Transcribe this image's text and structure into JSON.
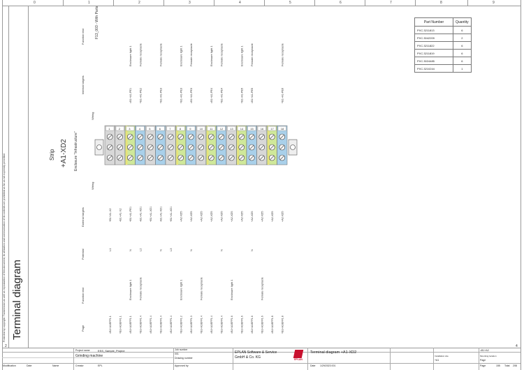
{
  "column_numbers": [
    "0",
    "1",
    "2",
    "3",
    "4",
    "5",
    "6",
    "7",
    "8",
    "9"
  ],
  "row_markers": {
    "left_bottom": "2",
    "right_bottom": "4"
  },
  "page_title": "Terminal diagram",
  "side_ref": "F13_003 - With Parts",
  "copyright_note": "Protected by copyright. Transmission as well as reproduction of this document, its utilization and communication of its contents are prohibited as far as not expressly permitted.",
  "strip": {
    "label": "Strip",
    "name": "+A1-XD2",
    "enclosure": "Enclosure \"Infrastructure\""
  },
  "row_headers": {
    "function_text": "Function text",
    "internal_targets": "Internal targets",
    "wiring_top": "Wiring",
    "wiring_bottom": "Wiring",
    "external_targets": "External targets",
    "potential": "Potential",
    "function_text_bottom": "Function text",
    "page": "Page"
  },
  "terminals": [
    {
      "num": "1",
      "color": "gray",
      "func_top": "",
      "internal": "",
      "external": "+B1+A1-X2",
      "potential": "L1",
      "func_bottom": "",
      "page": "=B1+A1/EFF1.1"
    },
    {
      "num": "2",
      "color": "gray",
      "func_top": "",
      "internal": "",
      "external": "+B1+A1-X2",
      "potential": "",
      "func_bottom": "",
      "page": "=B1+A1/EFF1.1"
    },
    {
      "num": "3",
      "color": "green",
      "func_top": "Enclosure light 1",
      "internal": "=B1+A1-PE1",
      "external": "+B1+A1-PE1",
      "potential": "N",
      "func_bottom": "Enclosure light 1",
      "page": "=B1+A1/EFF1.1"
    },
    {
      "num": "4",
      "color": "blue",
      "func_top": "Female receptacle",
      "internal": "=B1+A1-PE2",
      "external": "+B1+A1-XD1",
      "potential": "L2",
      "func_bottom": "Female receptacle",
      "page": "=B1+A1/EFF1.4"
    },
    {
      "num": "5",
      "color": "gray",
      "func_top": "",
      "internal": "",
      "external": "+B1+A1-XD1",
      "potential": "",
      "func_bottom": "",
      "page": "=B1+A1/EFF1.4"
    },
    {
      "num": "6",
      "color": "blue",
      "func_top": "Female receptacle",
      "internal": "=B1+A1-PE3",
      "external": "+B1+A1-XD1",
      "potential": "N",
      "func_bottom": "",
      "page": "=B1+A1/EFF1.4"
    },
    {
      "num": "7",
      "color": "gray",
      "func_top": "",
      "internal": "",
      "external": "+B1+A1-XD1",
      "potential": "L3",
      "func_bottom": "",
      "page": "=B1+A1/EFF1.4"
    },
    {
      "num": "8",
      "color": "green",
      "func_top": "Enclosure light 1",
      "internal": "=B1+A1-PE3",
      "external": "+A2-XD5",
      "potential": "",
      "func_bottom": "Enclosure light 1",
      "page": "=B1+A1/EFF1.2"
    },
    {
      "num": "9",
      "color": "blue",
      "func_top": "Female receptacle",
      "internal": "=B1+A1-PE3",
      "external": "+A2-XD5",
      "potential": "N",
      "func_bottom": "",
      "page": "=B1+A1/EFF1.3"
    },
    {
      "num": "10",
      "color": "gray",
      "func_top": "",
      "internal": "",
      "external": "+A2-XD5",
      "potential": "",
      "func_bottom": "Female receptacle",
      "page": "=B1+A1/EFF1.4"
    },
    {
      "num": "11",
      "color": "green",
      "func_top": "Enclosure light 1",
      "internal": "=B1+A1-PE4",
      "external": "+A2-XD5",
      "potential": "",
      "func_bottom": "",
      "page": "=B1+A1/EFF1.4"
    },
    {
      "num": "12",
      "color": "blue",
      "func_top": "Female receptacle",
      "internal": "=B1+A1-PE4",
      "external": "+A2-XD5",
      "potential": "N",
      "func_bottom": "",
      "page": "=B1+A1/EFF1.4"
    },
    {
      "num": "13",
      "color": "gray",
      "func_top": "",
      "internal": "",
      "external": "+A2-XD5",
      "potential": "",
      "func_bottom": "Enclosure light 1",
      "page": "=B1+A1/EFF1.6"
    },
    {
      "num": "14",
      "color": "green",
      "func_top": "Enclosure light 1",
      "internal": "=B1+A1-PE5",
      "external": "+A2-XD5",
      "potential": "",
      "func_bottom": "",
      "page": "=B1+A1/EFF1.6"
    },
    {
      "num": "15",
      "color": "blue",
      "func_top": "Female receptacle",
      "internal": "=B1+A1-PE5",
      "external": "+A2-XD5",
      "potential": "N",
      "func_bottom": "",
      "page": "=B1+A1/EFF1.6"
    },
    {
      "num": "16",
      "color": "gray",
      "func_top": "",
      "internal": "",
      "external": "+A2-XD5",
      "potential": "",
      "func_bottom": "Female receptacle",
      "page": "=B1+A1/EFF1.6"
    },
    {
      "num": "17",
      "color": "green",
      "func_top": "",
      "internal": "",
      "external": "+A2-XD5",
      "potential": "",
      "func_bottom": "",
      "page": "=B1+A1/EFF1.8"
    },
    {
      "num": "18",
      "color": "blue",
      "func_top": "Female receptacle",
      "internal": "=B1+A1-PE6",
      "external": "+A2-XD5",
      "potential": "",
      "func_bottom": "",
      "page": "=B1+A1/EFF1.8"
    }
  ],
  "parts_table": {
    "headers": [
      "Part Number",
      "Quantity"
    ],
    "rows": [
      [
        "PXC.3211813",
        "6"
      ],
      [
        "PXC.3042209",
        "2"
      ],
      [
        "PXC.3211822",
        "6"
      ],
      [
        "PXC.3211819",
        "6"
      ],
      [
        "PXC.3024485",
        "6"
      ],
      [
        "PXC.3210244",
        "1"
      ]
    ]
  },
  "title_block": {
    "project_name_label": "Project name",
    "project_name": "ESS_Sample_Project",
    "description": "Grinding machine",
    "job_number_label": "Job number",
    "job_number": "001",
    "drawing_number_label": "Drawing number",
    "company_line1": "EPLAN Software & Service",
    "company_line2": "GmbH & Co. KG",
    "logo_text": "EPLAN",
    "diagram_title": "Terminal diagram +A1-XD2",
    "modification_label": "Modification",
    "date_label": "Date",
    "name_label": "Name",
    "creator_label": "Creator",
    "creator": "EPL",
    "approved_label": "Approved by",
    "date_value": "1/29/2023 001",
    "date_prefix": "Date",
    "designation": "=B1+A2",
    "location": "+A1",
    "page_label": "Page",
    "page_value": "155",
    "total_label": "Total",
    "total_value": "208",
    "installation_label": "Installation site",
    "mounting_label": "Mounting location"
  },
  "colors": {
    "gray": "#d8d8d8",
    "green": "#cfe89a",
    "blue": "#a9d0ea",
    "yellow_stripe": "#e8e27a"
  }
}
